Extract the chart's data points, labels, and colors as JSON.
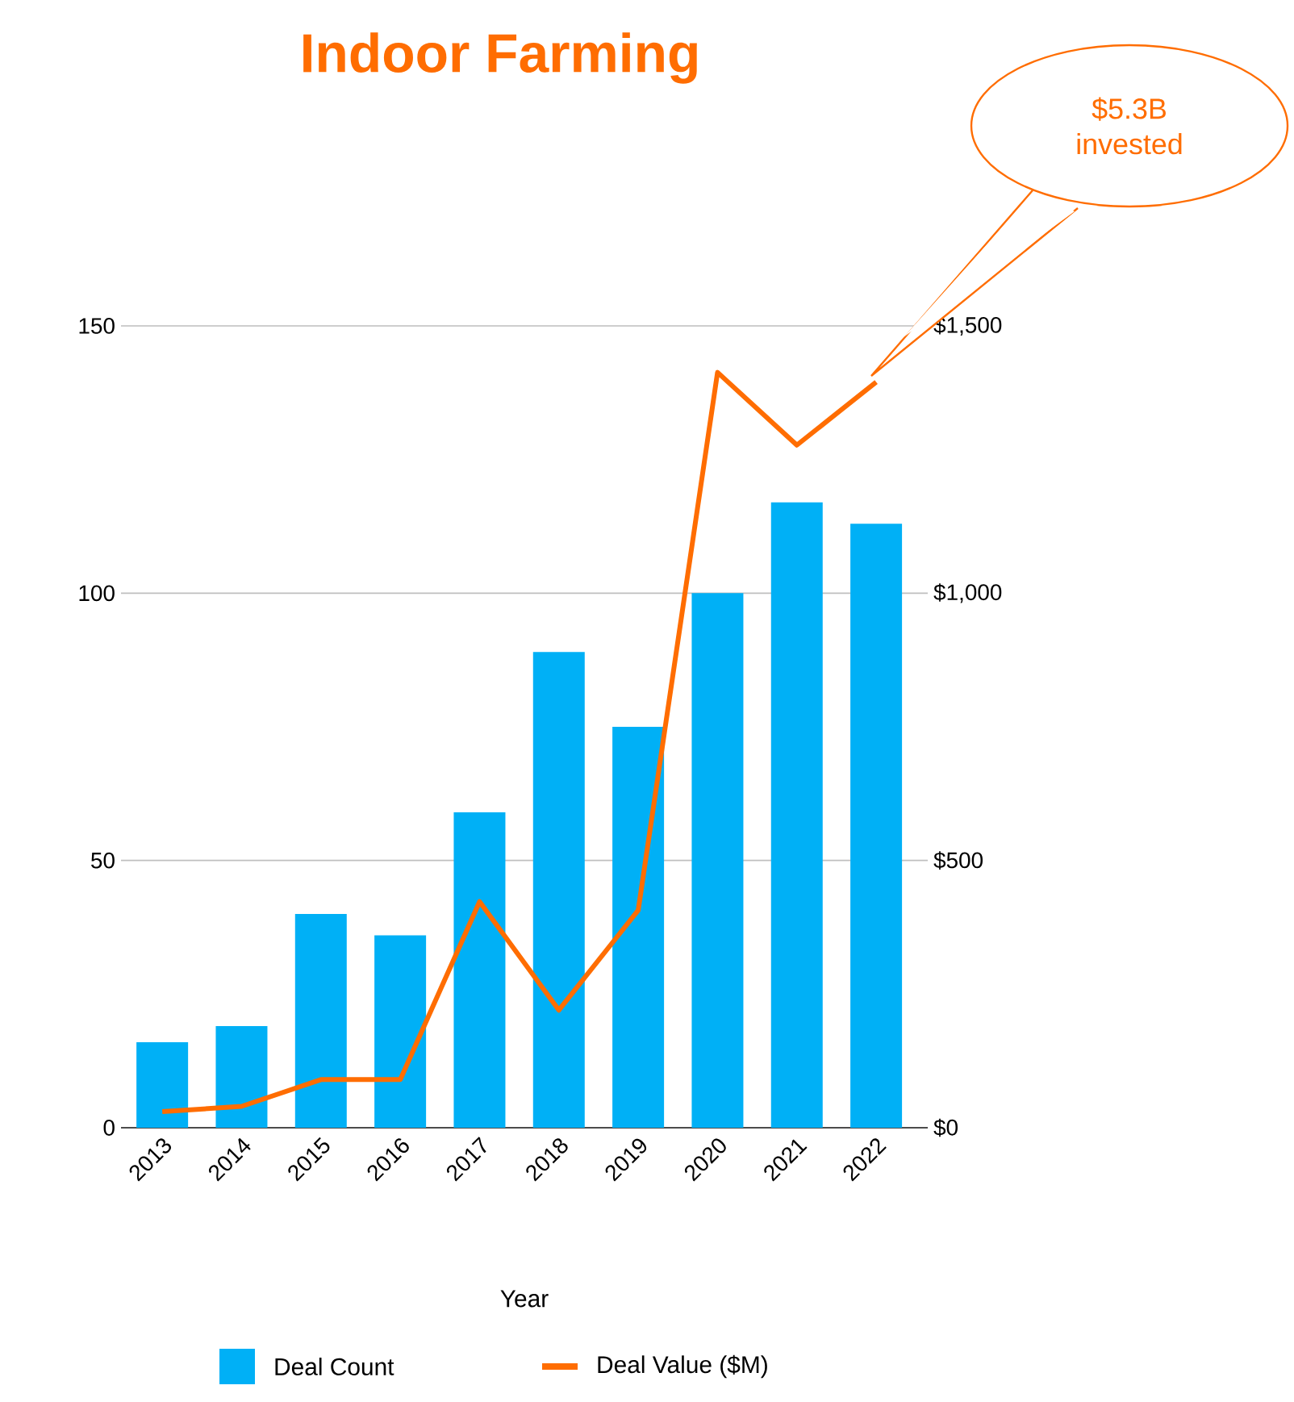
{
  "chart_data": {
    "type": "bar",
    "title": "Indoor Farming",
    "xlabel": "Year",
    "categories": [
      "2013",
      "2014",
      "2015",
      "2016",
      "2017",
      "2018",
      "2019",
      "2020",
      "2021",
      "2022"
    ],
    "series": [
      {
        "name": "Deal Count",
        "color": "#00b0f6",
        "values": [
          16,
          19,
          40,
          36,
          59,
          89,
          75,
          100,
          117,
          113
        ]
      },
      {
        "name": "Deal Value ($M)",
        "type": "line",
        "axis": "y2",
        "color": "#ff6d01",
        "values": [
          30,
          40,
          90,
          90,
          423,
          220,
          407,
          1413,
          1277,
          1395
        ]
      }
    ],
    "ylim": [
      0,
      150
    ],
    "yticks": [
      0,
      50,
      100,
      150
    ],
    "y2lim": [
      0,
      1500
    ],
    "y2ticks": [
      {
        "value": 0,
        "label": "$0"
      },
      {
        "value": 500,
        "label": "$500"
      },
      {
        "value": 1000,
        "label": "$1,000"
      },
      {
        "value": 1500,
        "label": "$1,500"
      }
    ],
    "grid": "y",
    "legend": "bottom",
    "annotations": [
      "$5.3B invested"
    ]
  }
}
